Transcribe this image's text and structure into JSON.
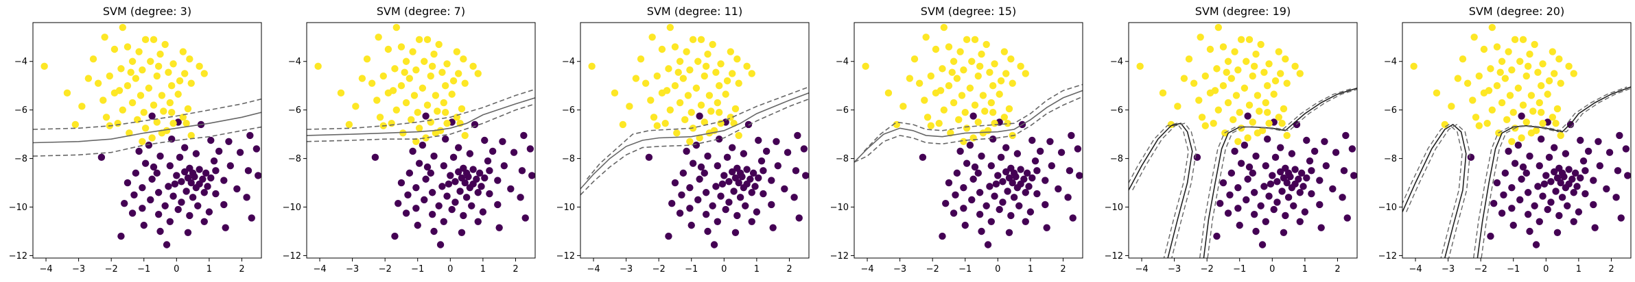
{
  "chart_data": [
    {
      "type": "scatter",
      "title": "SVM (degree: 3)",
      "xlim": [
        -4.4,
        2.6
      ],
      "ylim": [
        -12.1,
        -2.4
      ],
      "xticks": [
        -4,
        -3,
        -2,
        -1,
        0,
        1,
        2
      ],
      "yticks": [
        -4,
        -6,
        -8,
        -10,
        -12
      ],
      "boundary": {
        "solid": [
          [
            -4.4,
            -7.35
          ],
          [
            -3,
            -7.3
          ],
          [
            -2,
            -7.2
          ],
          [
            -1,
            -6.95
          ],
          [
            0,
            -6.75
          ],
          [
            1,
            -6.55
          ],
          [
            2,
            -6.3
          ],
          [
            2.6,
            -6.1
          ]
        ],
        "margin_upper": [
          [
            -4.4,
            -6.8
          ],
          [
            -3,
            -6.75
          ],
          [
            -2,
            -6.65
          ],
          [
            -1,
            -6.45
          ],
          [
            0,
            -6.25
          ],
          [
            1,
            -6.0
          ],
          [
            2,
            -5.75
          ],
          [
            2.6,
            -5.55
          ]
        ],
        "margin_lower": [
          [
            -4.4,
            -7.9
          ],
          [
            -3,
            -7.85
          ],
          [
            -2,
            -7.75
          ],
          [
            -1,
            -7.45
          ],
          [
            0,
            -7.25
          ],
          [
            1,
            -7.1
          ],
          [
            2,
            -6.85
          ],
          [
            2.6,
            -6.7
          ]
        ]
      }
    },
    {
      "type": "scatter",
      "title": "SVM (degree: 7)",
      "xlim": [
        -4.4,
        2.6
      ],
      "ylim": [
        -12.1,
        -2.4
      ],
      "xticks": [
        -4,
        -3,
        -2,
        -1,
        0,
        1,
        2
      ],
      "yticks": [
        -4,
        -6,
        -8,
        -10,
        -12
      ],
      "boundary": {
        "solid": [
          [
            -4.4,
            -7.05
          ],
          [
            -3,
            -7.0
          ],
          [
            -2,
            -6.95
          ],
          [
            -1,
            -6.9
          ],
          [
            -0.5,
            -6.85
          ],
          [
            0,
            -6.75
          ],
          [
            0.5,
            -6.55
          ],
          [
            1,
            -6.2
          ],
          [
            2,
            -5.75
          ],
          [
            2.6,
            -5.5
          ]
        ],
        "margin_upper": [
          [
            -4.4,
            -6.8
          ],
          [
            -3,
            -6.75
          ],
          [
            -2,
            -6.65
          ],
          [
            -1,
            -6.5
          ],
          [
            0,
            -6.3
          ],
          [
            1,
            -5.9
          ],
          [
            2,
            -5.4
          ],
          [
            2.6,
            -5.15
          ]
        ],
        "margin_lower": [
          [
            -4.4,
            -7.3
          ],
          [
            -3,
            -7.25
          ],
          [
            -2,
            -7.2
          ],
          [
            -1,
            -7.2
          ],
          [
            0,
            -7.0
          ],
          [
            1,
            -6.55
          ],
          [
            2,
            -6.0
          ],
          [
            2.6,
            -5.75
          ]
        ]
      }
    },
    {
      "type": "scatter",
      "title": "SVM (degree: 11)",
      "xlim": [
        -4.4,
        2.6
      ],
      "ylim": [
        -12.1,
        -2.4
      ],
      "xticks": [
        -4,
        -3,
        -2,
        -1,
        0,
        1,
        2
      ],
      "yticks": [
        -4,
        -6,
        -8,
        -10,
        -12
      ],
      "boundary": {
        "solid": [
          [
            -4.4,
            -9.25
          ],
          [
            -4,
            -8.65
          ],
          [
            -3.5,
            -8.0
          ],
          [
            -3,
            -7.5
          ],
          [
            -2.5,
            -7.25
          ],
          [
            -2,
            -7.15
          ],
          [
            -1,
            -7.1
          ],
          [
            0,
            -6.85
          ],
          [
            0.5,
            -6.55
          ],
          [
            1,
            -6.15
          ],
          [
            2,
            -5.6
          ],
          [
            2.6,
            -5.3
          ]
        ],
        "margin_upper": [
          [
            -4.2,
            -8.85
          ],
          [
            -3.8,
            -8.2
          ],
          [
            -3.3,
            -7.6
          ],
          [
            -2.8,
            -7.0
          ],
          [
            -2.3,
            -6.85
          ],
          [
            -1,
            -6.75
          ],
          [
            0,
            -6.45
          ],
          [
            1,
            -5.85
          ],
          [
            2,
            -5.35
          ],
          [
            2.6,
            -5.05
          ]
        ],
        "margin_lower": [
          [
            -4.4,
            -9.5
          ],
          [
            -4,
            -8.95
          ],
          [
            -3.5,
            -8.35
          ],
          [
            -3,
            -7.85
          ],
          [
            -2.5,
            -7.55
          ],
          [
            -2,
            -7.5
          ],
          [
            -1,
            -7.45
          ],
          [
            0,
            -7.15
          ],
          [
            1,
            -6.45
          ],
          [
            2,
            -5.85
          ],
          [
            2.6,
            -5.55
          ]
        ]
      }
    },
    {
      "type": "scatter",
      "title": "SVM (degree: 15)",
      "xlim": [
        -4.4,
        2.6
      ],
      "ylim": [
        -12.1,
        -2.4
      ],
      "xticks": [
        -4,
        -3,
        -2,
        -1,
        0,
        1,
        2
      ],
      "yticks": [
        -4,
        -6,
        -8,
        -10,
        -12
      ],
      "boundary": {
        "solid": [
          [
            -4.4,
            -8.15
          ],
          [
            -4,
            -7.6
          ],
          [
            -3.5,
            -7.0
          ],
          [
            -3,
            -6.75
          ],
          [
            -2.6,
            -6.85
          ],
          [
            -2.2,
            -7.05
          ],
          [
            -1.7,
            -7.1
          ],
          [
            -1,
            -6.95
          ],
          [
            0,
            -6.9
          ],
          [
            0.5,
            -6.8
          ],
          [
            1,
            -6.4
          ],
          [
            1.5,
            -5.9
          ],
          [
            2,
            -5.5
          ],
          [
            2.6,
            -5.2
          ]
        ],
        "margin_upper": [
          [
            -4.1,
            -7.7
          ],
          [
            -3.6,
            -7.0
          ],
          [
            -3.1,
            -6.5
          ],
          [
            -2.6,
            -6.6
          ],
          [
            -2.2,
            -6.8
          ],
          [
            -1.7,
            -6.85
          ],
          [
            -1,
            -6.7
          ],
          [
            0,
            -6.6
          ],
          [
            0.5,
            -6.55
          ],
          [
            1,
            -6.15
          ],
          [
            1.5,
            -5.6
          ],
          [
            2,
            -5.2
          ],
          [
            2.6,
            -4.95
          ]
        ],
        "margin_lower": [
          [
            -4.4,
            -8.15
          ],
          [
            -4,
            -7.9
          ],
          [
            -3.5,
            -7.3
          ],
          [
            -3,
            -7.05
          ],
          [
            -2.6,
            -7.15
          ],
          [
            -2.2,
            -7.35
          ],
          [
            -1.7,
            -7.4
          ],
          [
            -1,
            -7.25
          ],
          [
            0,
            -7.15
          ],
          [
            0.5,
            -7.05
          ],
          [
            1,
            -6.65
          ],
          [
            1.5,
            -6.15
          ],
          [
            2,
            -5.8
          ],
          [
            2.6,
            -5.45
          ]
        ]
      }
    },
    {
      "type": "scatter",
      "title": "SVM (degree: 19)",
      "xlim": [
        -4.4,
        2.6
      ],
      "ylim": [
        -12.1,
        -2.4
      ],
      "xticks": [
        -4,
        -3,
        -2,
        -1,
        0,
        1,
        2
      ],
      "yticks": [
        -4,
        -6,
        -8,
        -10,
        -12
      ],
      "boundary": {
        "solid": [
          [
            -4.4,
            -9.3
          ],
          [
            -4,
            -8.3
          ],
          [
            -3.5,
            -7.2
          ],
          [
            -3.1,
            -6.65
          ],
          [
            -2.8,
            -6.55
          ],
          [
            -2.6,
            -6.9
          ],
          [
            -2.45,
            -7.7
          ],
          [
            -2.6,
            -9.0
          ],
          [
            -2.9,
            -10.5
          ],
          [
            -3.2,
            -12.1
          ]
        ],
        "solid2": [
          [
            -2.1,
            -12.1
          ],
          [
            -1.95,
            -10.5
          ],
          [
            -1.75,
            -9.0
          ],
          [
            -1.55,
            -7.6
          ],
          [
            -1.35,
            -6.95
          ],
          [
            -1.0,
            -6.7
          ],
          [
            -0.6,
            -6.7
          ],
          [
            0,
            -6.75
          ],
          [
            0.4,
            -6.85
          ],
          [
            0.7,
            -6.5
          ],
          [
            1,
            -6.15
          ],
          [
            1.5,
            -5.7
          ],
          [
            2,
            -5.35
          ],
          [
            2.6,
            -5.1
          ]
        ]
      }
    },
    {
      "type": "scatter",
      "title": "SVM (degree: 20)",
      "xlim": [
        -4.4,
        2.6
      ],
      "ylim": [
        -12.1,
        -2.4
      ],
      "xticks": [
        -4,
        -3,
        -2,
        -1,
        0,
        1,
        2
      ],
      "yticks": [
        -4,
        -6,
        -8,
        -10,
        -12
      ],
      "boundary": {
        "solid": [
          [
            -4.4,
            -10.2
          ],
          [
            -4,
            -9.0
          ],
          [
            -3.5,
            -7.6
          ],
          [
            -3.1,
            -6.8
          ],
          [
            -2.85,
            -6.6
          ],
          [
            -2.6,
            -6.9
          ],
          [
            -2.45,
            -7.8
          ],
          [
            -2.55,
            -9.3
          ],
          [
            -2.85,
            -10.8
          ],
          [
            -3.1,
            -12.1
          ]
        ],
        "solid2": [
          [
            -2.1,
            -12.1
          ],
          [
            -1.95,
            -10.6
          ],
          [
            -1.75,
            -9.0
          ],
          [
            -1.55,
            -7.6
          ],
          [
            -1.35,
            -6.95
          ],
          [
            -1.0,
            -6.7
          ],
          [
            -0.6,
            -6.65
          ],
          [
            0,
            -6.75
          ],
          [
            0.5,
            -6.9
          ],
          [
            0.8,
            -6.5
          ],
          [
            1,
            -6.15
          ],
          [
            1.5,
            -5.7
          ],
          [
            2,
            -5.35
          ],
          [
            2.6,
            -5.05
          ]
        ]
      }
    }
  ],
  "points": {
    "class_yellow_color": "#fde725",
    "class_purple_color": "#440154",
    "yellow": [
      [
        -1.65,
        -2.6
      ],
      [
        -2.2,
        -3.0
      ],
      [
        -0.7,
        -3.1
      ],
      [
        -1.9,
        -3.5
      ],
      [
        -1.5,
        -3.4
      ],
      [
        -0.35,
        -3.3
      ],
      [
        -0.95,
        -3.1
      ],
      [
        -1.15,
        -3.6
      ],
      [
        -0.5,
        -3.7
      ],
      [
        0.2,
        -3.6
      ],
      [
        0.4,
        -3.9
      ],
      [
        -2.55,
        -3.9
      ],
      [
        -1.35,
        -4.0
      ],
      [
        -0.8,
        -4.0
      ],
      [
        -0.1,
        -4.1
      ],
      [
        0.7,
        -4.2
      ],
      [
        -4.05,
        -4.2
      ],
      [
        -1.7,
        -4.3
      ],
      [
        -1.05,
        -4.35
      ],
      [
        -0.25,
        -4.45
      ],
      [
        0.25,
        -4.5
      ],
      [
        -2.05,
        -4.6
      ],
      [
        -1.25,
        -4.7
      ],
      [
        -0.6,
        -4.6
      ],
      [
        0.1,
        -4.8
      ],
      [
        -2.4,
        -4.9
      ],
      [
        -1.5,
        -5.0
      ],
      [
        -0.85,
        -5.1
      ],
      [
        -0.15,
        -5.0
      ],
      [
        0.45,
        -4.9
      ],
      [
        -3.35,
        -5.3
      ],
      [
        -1.9,
        -5.3
      ],
      [
        -1.1,
        -5.4
      ],
      [
        -0.45,
        -5.4
      ],
      [
        0.05,
        -5.35
      ],
      [
        -2.25,
        -5.6
      ],
      [
        -1.35,
        -5.7
      ],
      [
        -0.7,
        -5.8
      ],
      [
        -0.2,
        -5.7
      ],
      [
        -2.9,
        -5.85
      ],
      [
        -1.65,
        -6.0
      ],
      [
        -1.0,
        -6.1
      ],
      [
        -0.4,
        -6.05
      ],
      [
        0.2,
        -6.3
      ],
      [
        -2.15,
        -6.3
      ],
      [
        -1.2,
        -6.4
      ],
      [
        -0.6,
        -6.5
      ],
      [
        -0.95,
        -6.75
      ],
      [
        -0.1,
        -6.55
      ],
      [
        -3.1,
        -6.6
      ],
      [
        -2.05,
        -6.65
      ],
      [
        -1.45,
        -6.95
      ],
      [
        -0.3,
        -6.85
      ],
      [
        0.45,
        -7.05
      ],
      [
        -0.75,
        -7.15
      ],
      [
        -1.75,
        -5.2
      ],
      [
        -1.4,
        -4.45
      ],
      [
        -0.55,
        -4.2
      ],
      [
        0.85,
        -4.5
      ],
      [
        -2.7,
        -4.7
      ],
      [
        -1.8,
        -6.55
      ],
      [
        -0.15,
        -6.1
      ],
      [
        0.35,
        -5.95
      ],
      [
        -1.05,
        -7.3
      ],
      [
        -0.45,
        -6.95
      ],
      [
        0.3,
        -6.55
      ]
    ],
    "purple": [
      [
        -0.75,
        -6.25
      ],
      [
        0.05,
        -6.5
      ],
      [
        0.75,
        -6.6
      ],
      [
        -0.15,
        -7.2
      ],
      [
        1.05,
        -7.25
      ],
      [
        -0.85,
        -7.45
      ],
      [
        0.25,
        -7.55
      ],
      [
        1.6,
        -7.3
      ],
      [
        2.25,
        -7.05
      ],
      [
        2.45,
        -7.6
      ],
      [
        1.95,
        -7.75
      ],
      [
        -0.5,
        -7.9
      ],
      [
        0.6,
        -7.8
      ],
      [
        -2.3,
        -7.95
      ],
      [
        1.15,
        -8.1
      ],
      [
        -0.95,
        -8.2
      ],
      [
        -0.2,
        -8.3
      ],
      [
        0.4,
        -8.4
      ],
      [
        1.65,
        -8.3
      ],
      [
        2.2,
        -8.5
      ],
      [
        -1.25,
        -8.6
      ],
      [
        -0.6,
        -8.6
      ],
      [
        0.0,
        -8.7
      ],
      [
        0.25,
        -8.55
      ],
      [
        0.5,
        -8.6
      ],
      [
        0.7,
        -8.45
      ],
      [
        0.9,
        -8.6
      ],
      [
        1.2,
        -8.5
      ],
      [
        -0.75,
        -8.85
      ],
      [
        0.35,
        -8.8
      ],
      [
        0.55,
        -8.75
      ],
      [
        0.8,
        -8.85
      ],
      [
        1.05,
        -8.8
      ],
      [
        2.5,
        -8.7
      ],
      [
        -1.5,
        -9.0
      ],
      [
        0.15,
        -8.95
      ],
      [
        0.45,
        -9.0
      ],
      [
        0.7,
        -9.05
      ],
      [
        1.45,
        -8.9
      ],
      [
        -0.25,
        -9.15
      ],
      [
        0.6,
        -9.2
      ],
      [
        -1.05,
        -9.2
      ],
      [
        1.85,
        -9.25
      ],
      [
        -0.55,
        -9.4
      ],
      [
        0.3,
        -9.35
      ],
      [
        0.85,
        -9.4
      ],
      [
        -1.3,
        -9.5
      ],
      [
        -0.1,
        -9.55
      ],
      [
        0.5,
        -9.6
      ],
      [
        1.2,
        -9.45
      ],
      [
        2.15,
        -9.6
      ],
      [
        -0.8,
        -9.7
      ],
      [
        0.15,
        -9.8
      ],
      [
        -1.6,
        -9.85
      ],
      [
        -0.35,
        -9.95
      ],
      [
        0.65,
        -9.95
      ],
      [
        1.45,
        -9.9
      ],
      [
        -1.05,
        -10.05
      ],
      [
        0.05,
        -10.1
      ],
      [
        -1.35,
        -10.25
      ],
      [
        -0.55,
        -10.3
      ],
      [
        0.4,
        -10.35
      ],
      [
        1.0,
        -10.2
      ],
      [
        2.3,
        -10.45
      ],
      [
        -0.2,
        -10.6
      ],
      [
        0.85,
        -10.6
      ],
      [
        -1.0,
        -10.75
      ],
      [
        1.5,
        -10.85
      ],
      [
        -0.5,
        -11.0
      ],
      [
        0.35,
        -11.05
      ],
      [
        -1.7,
        -11.2
      ],
      [
        -0.3,
        -11.55
      ],
      [
        -0.05,
        -9.05
      ],
      [
        0.95,
        -9.15
      ],
      [
        -0.7,
        -8.35
      ],
      [
        1.3,
        -7.7
      ],
      [
        -1.15,
        -7.7
      ],
      [
        0.1,
        -7.95
      ]
    ]
  }
}
